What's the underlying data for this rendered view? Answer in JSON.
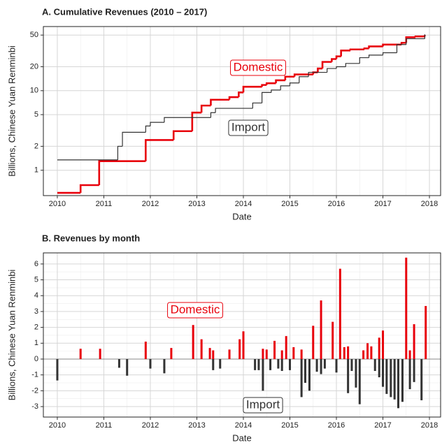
{
  "chart_data": [
    {
      "type": "line",
      "title": "A. Cumulative Revenues (2010 – 2017)",
      "xlabel": "Date",
      "ylabel": "Billions, Chinese Yuan Renminbi",
      "xlim": [
        2009.7,
        2018.24
      ],
      "xticks": [
        2010,
        2011,
        2012,
        2013,
        2014,
        2015,
        2016,
        2017,
        2018
      ],
      "ylim": [
        0.48,
        64
      ],
      "yticks": [
        1,
        2,
        5,
        10,
        20,
        50
      ],
      "log_scale": true,
      "grid": true,
      "annotations": [
        {
          "text": "Domestic",
          "color": "#e8000b"
        },
        {
          "text": "Import",
          "color": "#333333"
        }
      ],
      "series": [
        {
          "name": "Domestic",
          "color": "#e8000b",
          "x": [
            2010.0,
            2010.5,
            2010.9,
            2011.9,
            2012.5,
            2012.9,
            2013.1,
            2013.3,
            2013.7,
            2013.9,
            2014.0,
            2014.4,
            2014.5,
            2014.7,
            2014.9,
            2015.1,
            2015.5,
            2015.6,
            2015.7,
            2015.9,
            2016.0,
            2016.1,
            2016.3,
            2016.6,
            2016.7,
            2017.0,
            2017.4,
            2017.5,
            2017.7,
            2017.9
          ],
          "values": [
            0.52,
            0.65,
            1.3,
            2.4,
            3.1,
            5.3,
            6.5,
            7.7,
            8.3,
            9.5,
            11.2,
            11.8,
            12.4,
            13.5,
            15,
            16,
            17,
            19,
            23,
            25,
            27,
            32,
            33,
            34,
            36,
            38,
            40,
            47,
            48,
            50
          ]
        },
        {
          "name": "Import",
          "color": "#333333",
          "x": [
            2010.0,
            2011.3,
            2011.4,
            2011.9,
            2012.0,
            2012.3,
            2013.3,
            2013.4,
            2014.2,
            2014.4,
            2014.6,
            2014.8,
            2015.0,
            2015.2,
            2015.4,
            2015.8,
            2016.0,
            2016.2,
            2016.5,
            2016.7,
            2017.0,
            2017.3,
            2017.5,
            2017.9
          ],
          "values": [
            1.35,
            2.0,
            3.0,
            3.6,
            4.0,
            4.6,
            5.3,
            6.0,
            7.0,
            9.5,
            10.2,
            11.5,
            12.5,
            15,
            17,
            19,
            20,
            22,
            26,
            28,
            30,
            38,
            45,
            51
          ]
        }
      ]
    },
    {
      "type": "bar",
      "title": "B. Revenues by month",
      "xlabel": "Date",
      "ylabel": "Billions, Chinese Yuan Renminbi",
      "xlim": [
        2009.7,
        2018.24
      ],
      "xticks": [
        2010,
        2011,
        2012,
        2013,
        2014,
        2015,
        2016,
        2017,
        2018
      ],
      "ylim": [
        -3.66,
        6.7
      ],
      "yticks": [
        -3,
        -2,
        -1,
        0,
        1,
        2,
        3,
        4,
        5,
        6
      ],
      "grid": true,
      "annotations": [
        {
          "text": "Domestic",
          "color": "#e8000b"
        },
        {
          "text": "Import",
          "color": "#333333"
        }
      ],
      "series": [
        {
          "name": "Domestic",
          "color": "#e8000b",
          "x": [
            2010.5,
            2010.92,
            2011.9,
            2012.45,
            2012.92,
            2013.1,
            2013.28,
            2013.35,
            2013.7,
            2013.92,
            2014.0,
            2014.42,
            2014.5,
            2014.67,
            2014.83,
            2014.92,
            2015.08,
            2015.25,
            2015.5,
            2015.67,
            2015.92,
            2016.08,
            2016.17,
            2016.25,
            2016.58,
            2016.67,
            2016.75,
            2016.92,
            2017.0,
            2017.5,
            2017.58,
            2017.67,
            2017.92
          ],
          "values": [
            0.65,
            0.65,
            1.1,
            0.7,
            2.15,
            1.25,
            0.7,
            0.55,
            0.6,
            1.25,
            1.75,
            0.65,
            0.6,
            1.15,
            0.55,
            1.45,
            0.75,
            0.6,
            2.1,
            3.7,
            2.35,
            5.7,
            0.75,
            0.8,
            0.55,
            1.0,
            0.8,
            1.35,
            1.8,
            6.4,
            0.55,
            2.2,
            3.35
          ]
        },
        {
          "name": "Import",
          "color": "#333333",
          "x": [
            2010.0,
            2011.33,
            2011.5,
            2012.0,
            2012.3,
            2013.35,
            2013.5,
            2014.25,
            2014.33,
            2014.42,
            2014.58,
            2014.75,
            2014.83,
            2015.0,
            2015.25,
            2015.33,
            2015.42,
            2015.58,
            2015.67,
            2015.75,
            2016.0,
            2016.25,
            2016.33,
            2016.42,
            2016.5,
            2016.83,
            2016.92,
            2017.0,
            2017.08,
            2017.17,
            2017.25,
            2017.33,
            2017.42,
            2017.58,
            2017.67,
            2017.83
          ],
          "values": [
            -1.35,
            -0.55,
            -1.05,
            -0.6,
            -0.9,
            -0.7,
            -0.6,
            -0.7,
            -0.7,
            -2.0,
            -0.7,
            -0.6,
            -0.75,
            -0.7,
            -2.4,
            -1.5,
            -2.0,
            -0.8,
            -0.95,
            -0.6,
            -0.85,
            -2.15,
            -0.75,
            -1.8,
            -2.85,
            -0.75,
            -1.15,
            -1.75,
            -2.2,
            -2.4,
            -2.55,
            -3.1,
            -2.7,
            -1.9,
            -1.45,
            -2.6
          ]
        }
      ]
    }
  ]
}
